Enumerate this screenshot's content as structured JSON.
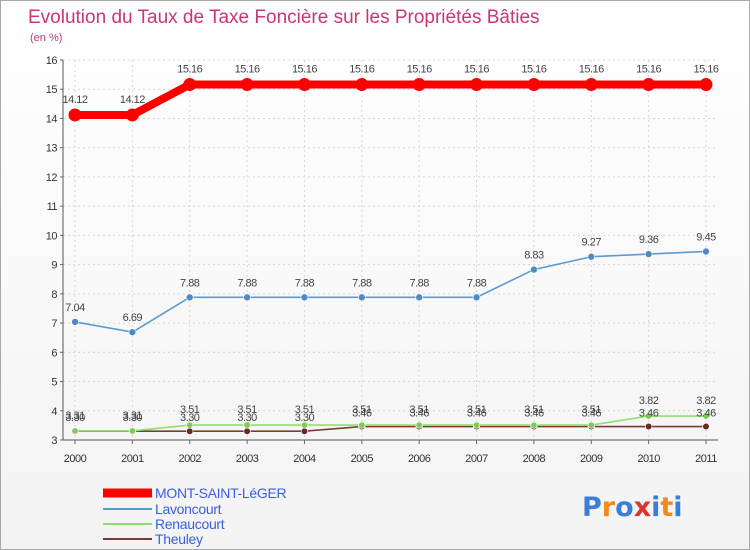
{
  "chart_data": {
    "type": "line",
    "title": "Evolution du Taux de Taxe Foncière sur les Propriétés Bâties",
    "subtitle": "(en %)",
    "xlabel": "",
    "ylabel": "",
    "ylim": [
      3,
      16
    ],
    "yticks": [
      "3",
      "4",
      "5",
      "6",
      "7",
      "8",
      "9",
      "10",
      "11",
      "12",
      "13",
      "14",
      "15",
      "16"
    ],
    "categories": [
      "2000",
      "2001",
      "2002",
      "2003",
      "2004",
      "2005",
      "2006",
      "2007",
      "2008",
      "2009",
      "2010",
      "2011"
    ],
    "legend_position": "bottom-left",
    "series": [
      {
        "name": "MONT-SAINT-LéGER",
        "color": "#ff0000",
        "values": [
          14.12,
          14.12,
          15.16,
          15.16,
          15.16,
          15.16,
          15.16,
          15.16,
          15.16,
          15.16,
          15.16,
          15.16
        ],
        "labels": [
          "14.12",
          "14.12",
          "15.16",
          "15.16",
          "15.16",
          "15.16",
          "15.16",
          "15.16",
          "15.16",
          "15.16",
          "15.16",
          "15.16"
        ]
      },
      {
        "name": "Lavoncourt",
        "color": "#5b9bd5",
        "values": [
          7.04,
          6.69,
          7.88,
          7.88,
          7.88,
          7.88,
          7.88,
          7.88,
          8.83,
          9.27,
          9.36,
          9.45
        ],
        "labels": [
          "7.04",
          "6.69",
          "7.88",
          "7.88",
          "7.88",
          "7.88",
          "7.88",
          "7.88",
          "8.83",
          "9.27",
          "9.36",
          "9.45"
        ]
      },
      {
        "name": "Renaucourt",
        "color": "#90e070",
        "values": [
          3.31,
          3.31,
          3.51,
          3.51,
          3.51,
          3.51,
          3.51,
          3.51,
          3.51,
          3.51,
          3.82,
          3.82
        ],
        "labels": [
          "3.31",
          "3.31",
          "3.51",
          "3.51",
          "3.51",
          "3.51",
          "3.51",
          "3.51",
          "3.51",
          "3.51",
          "3.82",
          "3.82"
        ]
      },
      {
        "name": "Theuley",
        "color": "#7a3b3b",
        "values": [
          3.3,
          3.3,
          3.3,
          3.3,
          3.3,
          3.46,
          3.46,
          3.46,
          3.46,
          3.46,
          3.46,
          3.46
        ],
        "labels": [
          "3.30",
          "3.30",
          "3.30",
          "3.30",
          "3.30",
          "3.46",
          "3.46",
          "3.46",
          "3.46",
          "3.46",
          "3.46",
          "3.46"
        ]
      }
    ]
  },
  "logo": {
    "text": "Proxiti"
  }
}
